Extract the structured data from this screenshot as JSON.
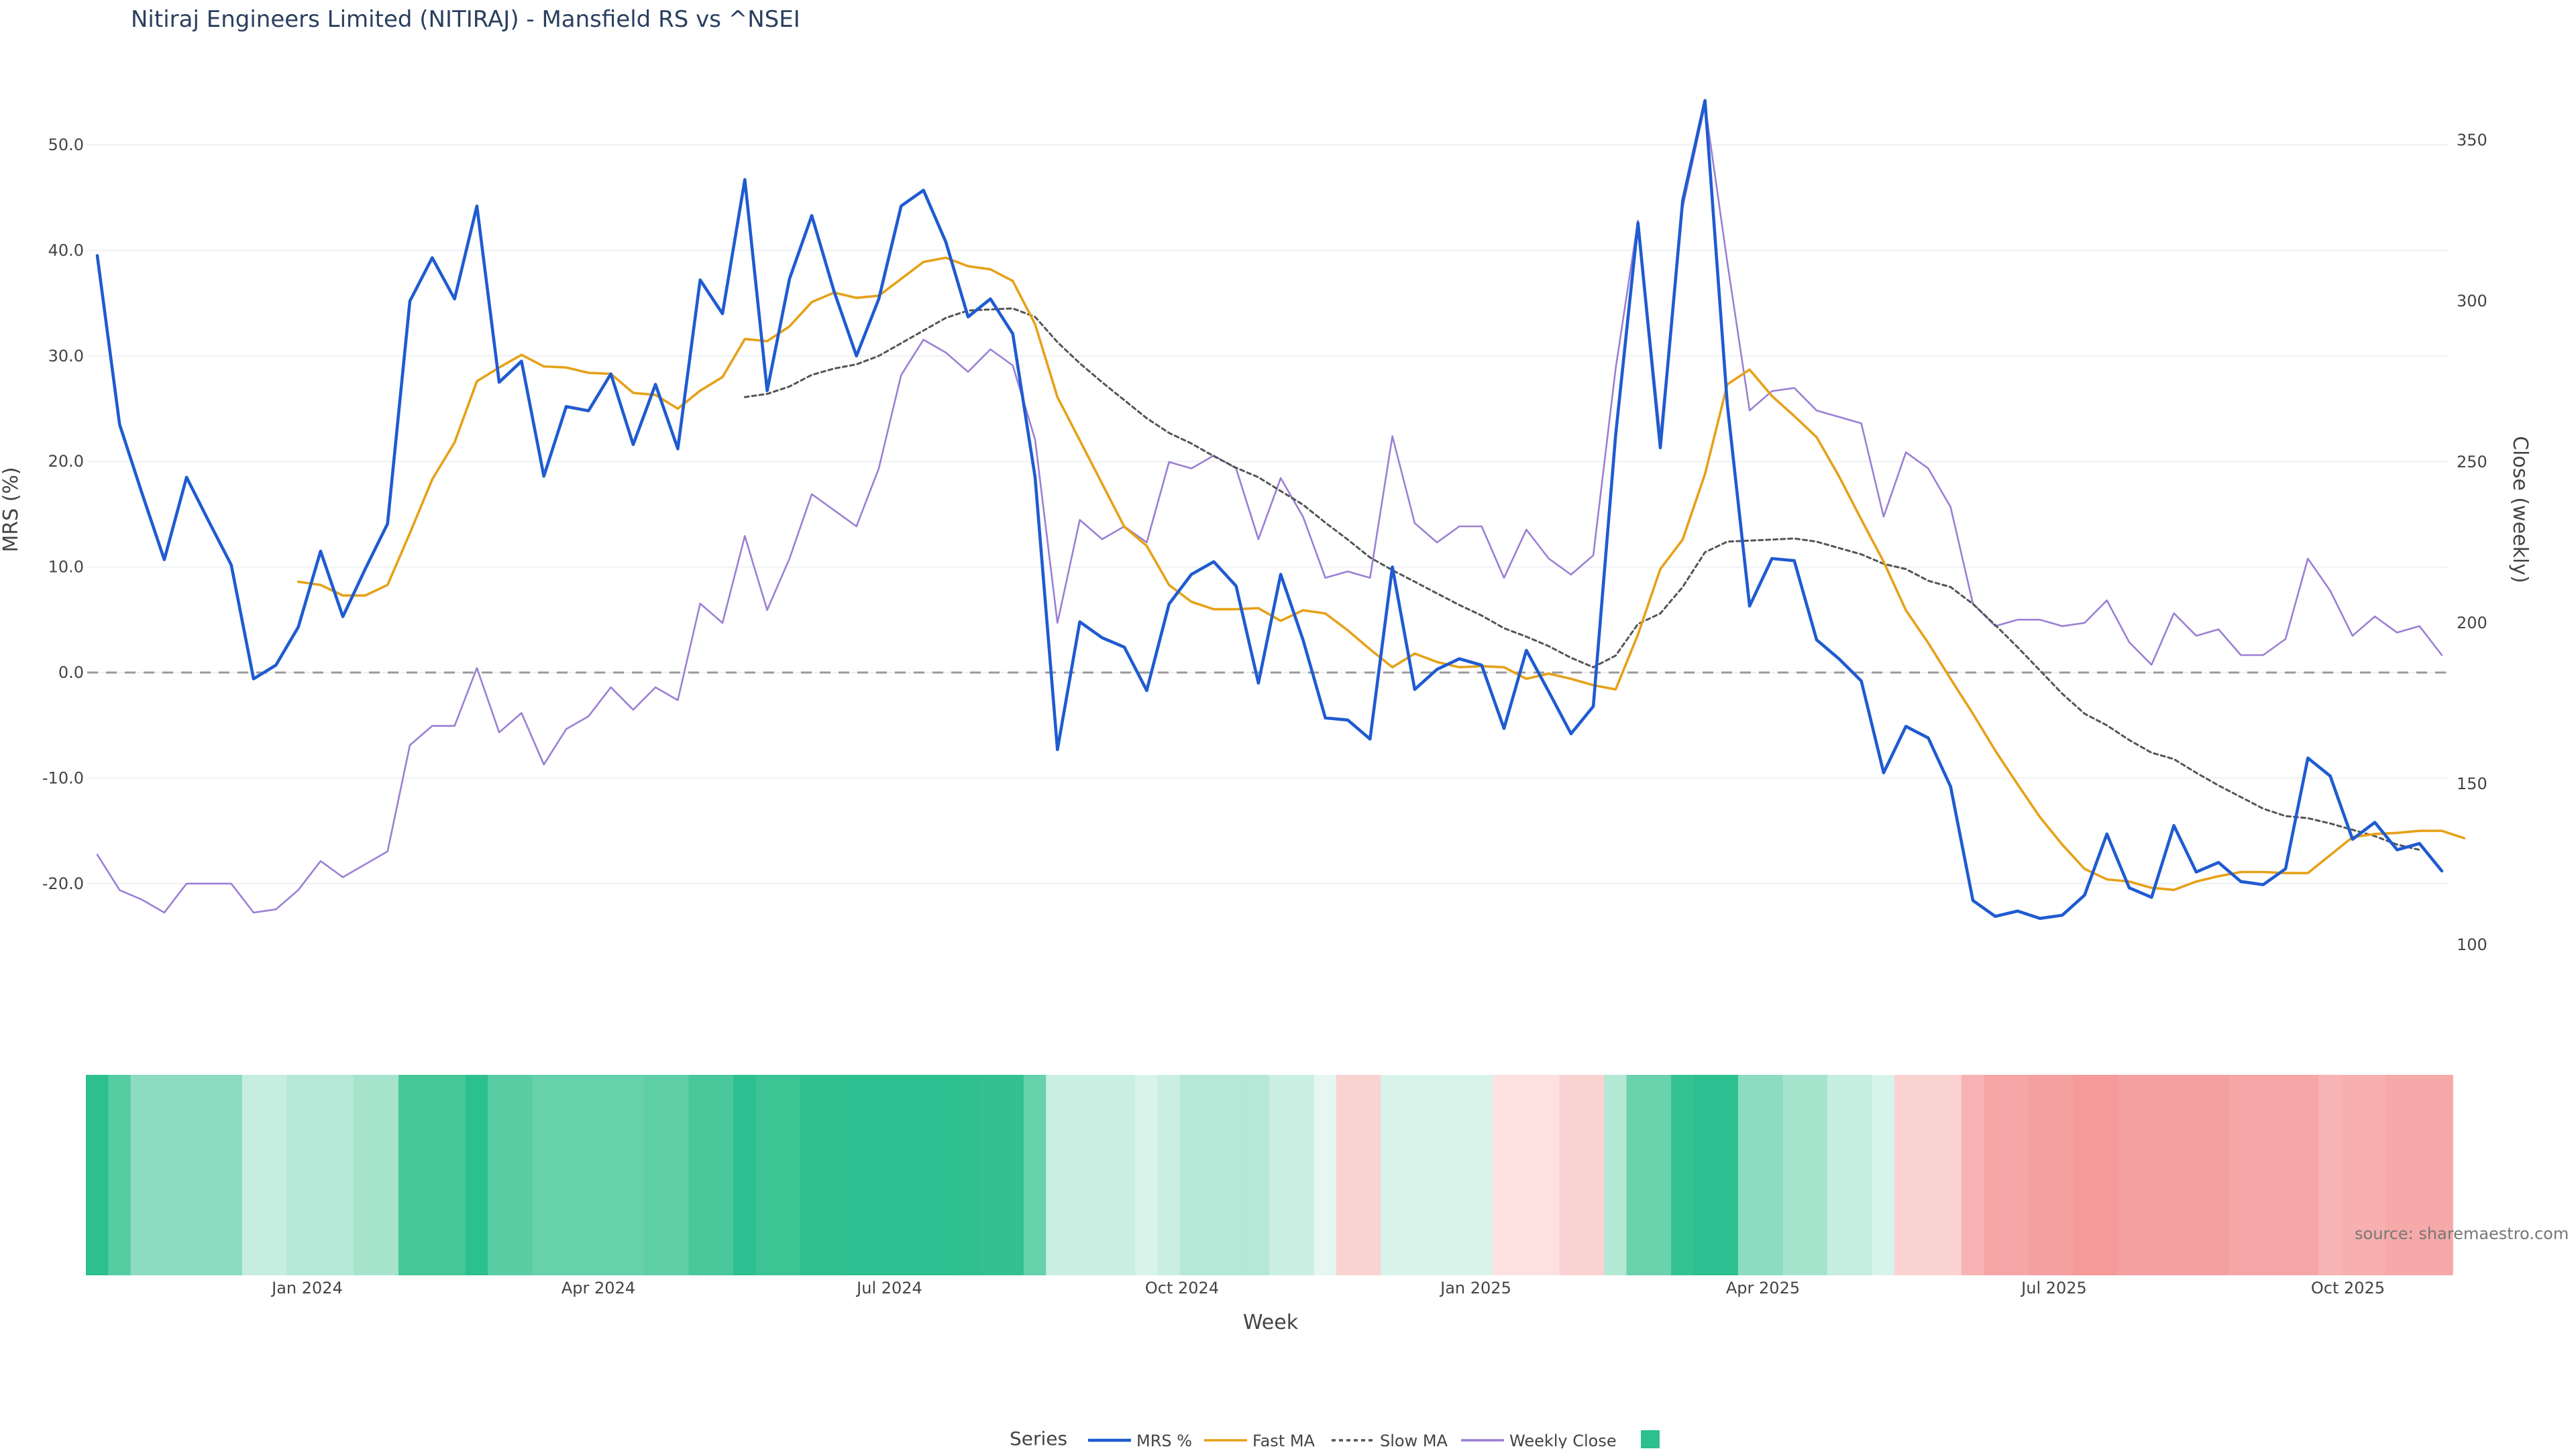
{
  "chart_data": {
    "type": "line",
    "title": "Nitiraj Engineers Limited (NITIRAJ) - Mansfield RS vs ^NSEI",
    "xlabel": "Week",
    "ylabel_left": "MRS (%)",
    "ylabel_right": "Close (weekly)",
    "y_left_ticks": [
      "50.0",
      "40.0",
      "30.0",
      "20.0",
      "10.0",
      "0.0",
      "-10.0",
      "-20.0"
    ],
    "y_right_ticks": [
      "350",
      "300",
      "250",
      "200",
      "150",
      "100"
    ],
    "x_ticks": [
      "Jan 2024",
      "Apr 2024",
      "Jul 2024",
      "Oct 2024",
      "Jan 2025",
      "Apr 2025",
      "Jul 2025",
      "Oct 2025"
    ],
    "ylim_left": [
      -27,
      57
    ],
    "ylim_right": [
      88,
      360
    ],
    "series": [
      {
        "name": "MRS %",
        "color": "#1f5bd1",
        "axis": "left",
        "start_index": 0,
        "values": [
          39.5,
          23.5,
          17.0,
          10.7,
          18.5,
          14.3,
          10.2,
          -0.6,
          0.7,
          4.3,
          11.5,
          5.3,
          9.8,
          14.1,
          35.2,
          39.3,
          35.4,
          44.2,
          27.5,
          29.5,
          18.6,
          25.2,
          24.8,
          28.3,
          21.6,
          27.3,
          21.2,
          37.2,
          34.0,
          46.7,
          26.7,
          37.3,
          43.3,
          36.1,
          30.0,
          35.4,
          44.2,
          45.7,
          40.8,
          33.7,
          35.4,
          32.1,
          18.5,
          -7.3,
          4.8,
          3.3,
          2.4,
          -1.7,
          6.5,
          9.3,
          10.5,
          8.2,
          -1.0,
          9.3,
          3.1,
          -4.3,
          -4.5,
          -6.3,
          10.0,
          -1.6,
          0.3,
          1.3,
          0.7,
          -5.3,
          2.1,
          -1.8,
          -5.8,
          -3.2,
          22.5,
          42.6,
          21.3,
          44.7,
          54.2,
          25.4,
          6.3,
          10.8,
          10.6,
          3.1,
          1.3,
          -0.8,
          -9.5,
          -5.1,
          -6.2,
          -10.8,
          -21.6,
          -23.1,
          -22.6,
          -23.3,
          -23.0,
          -21.1,
          -15.3,
          -20.4,
          -21.3,
          -14.5,
          -18.9,
          -18.0,
          -19.8,
          -20.1,
          -18.6,
          -8.1,
          -9.8,
          -15.8,
          -14.2,
          -16.8,
          -16.2,
          -18.8
        ]
      },
      {
        "name": "Fast MA",
        "color": "#e6a118",
        "axis": "left",
        "start_index": 9,
        "values": [
          8.6,
          8.3,
          7.3,
          7.3,
          8.3,
          13.2,
          18.3,
          21.8,
          27.6,
          28.9,
          30.1,
          29.0,
          28.9,
          28.4,
          28.3,
          26.5,
          26.3,
          25.0,
          26.7,
          28.0,
          31.6,
          31.4,
          32.8,
          35.1,
          36.0,
          35.5,
          35.7,
          37.3,
          38.9,
          39.3,
          38.5,
          38.2,
          37.1,
          33.0,
          26.1,
          22.0,
          17.9,
          13.8,
          12.0,
          8.3,
          6.7,
          6.0,
          6.0,
          6.1,
          4.9,
          5.9,
          5.6,
          4.0,
          2.2,
          0.5,
          1.8,
          1.0,
          0.5,
          0.6,
          0.5,
          -0.6,
          -0.1,
          -0.6,
          -1.2,
          -1.6,
          3.6,
          9.8,
          12.6,
          18.8,
          27.3,
          28.7,
          26.2,
          24.3,
          22.3,
          18.6,
          14.5,
          10.5,
          5.9,
          2.8,
          -0.6,
          -3.9,
          -7.4,
          -10.6,
          -13.7,
          -16.3,
          -18.6,
          -19.6,
          -19.8,
          -20.4,
          -20.6,
          -19.8,
          -19.3,
          -18.9,
          -18.9,
          -19.0,
          -19.0,
          -17.3,
          -15.6,
          -15.3,
          -15.2,
          -15.0,
          -15.0,
          -15.7
        ]
      },
      {
        "name": "Slow MA",
        "color": "#555555",
        "axis": "left",
        "dash": "6,5",
        "start_index": 29,
        "values": [
          26.1,
          26.4,
          27.1,
          28.2,
          28.8,
          29.2,
          30.0,
          31.2,
          32.4,
          33.6,
          34.3,
          34.4,
          34.5,
          33.7,
          31.3,
          29.3,
          27.5,
          25.8,
          24.1,
          22.7,
          21.7,
          20.5,
          19.4,
          18.5,
          17.2,
          15.9,
          14.2,
          12.6,
          10.9,
          9.7,
          8.6,
          7.5,
          6.4,
          5.4,
          4.2,
          3.4,
          2.5,
          1.4,
          0.5,
          1.6,
          4.6,
          5.6,
          8.1,
          11.4,
          12.4,
          12.5,
          12.6,
          12.7,
          12.4,
          11.8,
          11.2,
          10.3,
          9.8,
          8.7,
          8.1,
          6.5,
          4.5,
          2.4,
          0.2,
          -2.0,
          -3.9,
          -5.0,
          -6.4,
          -7.6,
          -8.2,
          -9.5,
          -10.7,
          -11.8,
          -12.9,
          -13.6,
          -13.8,
          -14.3,
          -14.9,
          -15.5,
          -16.3,
          -16.8
        ]
      },
      {
        "name": "Weekly Close",
        "color": "#9b7fd4",
        "axis": "right",
        "start_index": 0,
        "values": [
          128,
          117,
          114,
          110,
          119,
          119,
          119,
          110,
          111,
          117,
          126,
          121,
          125,
          129,
          162,
          168,
          168,
          186,
          166,
          172,
          156,
          167,
          171,
          180,
          173,
          180,
          176,
          206,
          200,
          227,
          204,
          220,
          240,
          235,
          230,
          248,
          277,
          288,
          284,
          278,
          285,
          280,
          257,
          200,
          232,
          226,
          230,
          225,
          250,
          248,
          252,
          248,
          226,
          245,
          233,
          214,
          216,
          214,
          258,
          231,
          225,
          230,
          230,
          214,
          229,
          220,
          215,
          221,
          279,
          325,
          258,
          329,
          361,
          312,
          266,
          272,
          273,
          266,
          264,
          262,
          233,
          253,
          248,
          236,
          206,
          199,
          201,
          201,
          199,
          200,
          207,
          194,
          187,
          203,
          196,
          198,
          190,
          190,
          195,
          220,
          210,
          196,
          202,
          197,
          199,
          190
        ]
      }
    ],
    "heatmap_colors": [
      "#2cbf8f",
      "#55cca2",
      "#8bdcc0",
      "#8bdcc0",
      "#8bdcc0",
      "#8bdcc0",
      "#8bdcc0",
      "#c6eee0",
      "#c6eee0",
      "#b5e8d6",
      "#b5e8d6",
      "#b5e8d6",
      "#a6e3cd",
      "#a6e3cd",
      "#46c798",
      "#46c798",
      "#46c798",
      "#2cbf8f",
      "#58cda3",
      "#58cda3",
      "#66d1ab",
      "#66d1ab",
      "#66d1ab",
      "#66d1ab",
      "#66d1ab",
      "#5fcfa7",
      "#5fcfa7",
      "#4bc89b",
      "#4bc89b",
      "#2cbf8f",
      "#3cc494",
      "#3cc494",
      "#30c090",
      "#30c090",
      "#2cbf8f",
      "#2cbf8f",
      "#2cbf8f",
      "#2cbf8f",
      "#2cbf8f",
      "#30c090",
      "#33c192",
      "#33c192",
      "#66d1ab",
      "#c9efe2",
      "#c9efe2",
      "#c9efe2",
      "#c9efe2",
      "#d8f3ea",
      "#c9efe2",
      "#b5e8d6",
      "#b5e8d6",
      "#b5e8d6",
      "#b5e8d6",
      "#c9efe2",
      "#c9efe2",
      "#e5f7f0",
      "#fbd2d2",
      "#fbd2d2",
      "#d8f3ea",
      "#d8f3ea",
      "#d8f3ea",
      "#d8f3ea",
      "#d8f3ea",
      "#fde1e1",
      "#fde1e1",
      "#fde1e1",
      "#fbd2d2",
      "#fbd2d2",
      "#b3e8d5",
      "#6ad2ac",
      "#6ad2ac",
      "#35c293",
      "#2cbf8f",
      "#2cbf8f",
      "#8bdcc0",
      "#8bdcc0",
      "#a6e3cd",
      "#a6e3cd",
      "#c6eee0",
      "#c6eee0",
      "#d8f3ea",
      "#fbd2d2",
      "#fbd2d2",
      "#fbd2d2",
      "#f7b3b3",
      "#f6a6a6",
      "#f6a6a6",
      "#f5a0a0",
      "#f5a0a0",
      "#f59999",
      "#f59999",
      "#f5a0a0",
      "#f5a0a0",
      "#f5a0a0",
      "#f5a0a0",
      "#f5a0a0",
      "#f6a6a6",
      "#f6a6a6",
      "#f6a6a6",
      "#f6a6a6",
      "#f8b4b4",
      "#f7afaf",
      "#f7afaf",
      "#f6a9a9",
      "#f6a9a9",
      "#f6a9a9"
    ],
    "legend": {
      "title": "Series",
      "entries": [
        "MRS %",
        "Fast MA",
        "Slow MA",
        "Weekly Close"
      ],
      "extra_color": "#2cbf8f",
      "placement": "bottom-center"
    },
    "source": "source: sharemaestro.com",
    "zero_line": true,
    "grid": true
  }
}
